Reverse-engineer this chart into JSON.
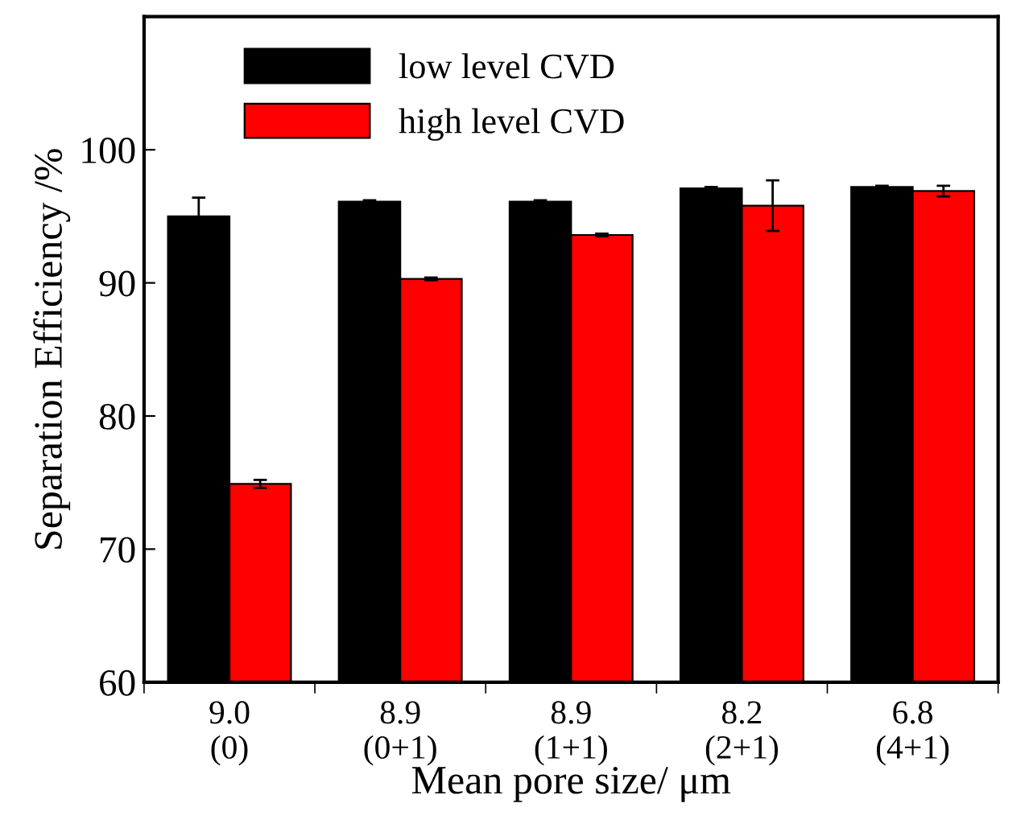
{
  "chart_data": {
    "type": "bar",
    "xlabel": "Mean pore size/ μm",
    "ylabel": "Separation Efficiency /%",
    "categories": [
      "9.0\n(0)",
      "8.9\n(0+1)",
      "8.9\n(1+1)",
      "8.2\n(2+1)",
      "6.8\n(4+1)"
    ],
    "series": [
      {
        "name": "low level CVD",
        "color": "#000000",
        "values": [
          95.0,
          96.1,
          96.1,
          97.1,
          97.2
        ],
        "errors": [
          1.4,
          0.1,
          0.1,
          0.1,
          0.1
        ]
      },
      {
        "name": "high level CVD",
        "color": "#ff0000",
        "values": [
          74.9,
          90.3,
          93.6,
          95.8,
          96.9
        ],
        "errors": [
          0.3,
          0.1,
          0.1,
          1.9,
          0.4
        ]
      }
    ],
    "ylim": [
      60,
      110
    ],
    "yticks": [
      60,
      70,
      80,
      90,
      100
    ],
    "legend": "top left",
    "grid": false
  }
}
